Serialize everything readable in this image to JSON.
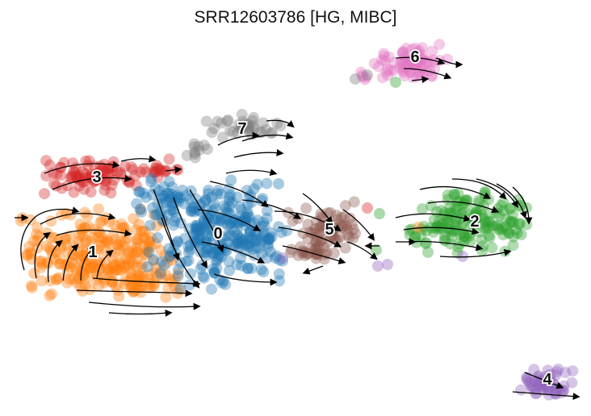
{
  "chart_data": {
    "type": "scatter",
    "title": "SRR12603786 [HG, MIBC]",
    "xlabel": "",
    "ylabel": "",
    "axes_visible": false,
    "grid": false,
    "legend": "on data",
    "overlay": "velocity streamlines",
    "clusters": [
      {
        "label": "0",
        "color": "#1f77b4",
        "center": [
          270,
          290
        ]
      },
      {
        "label": "1",
        "color": "#ff7f0e",
        "center": [
          115,
          313
        ]
      },
      {
        "label": "2",
        "color": "#2ca02c",
        "center": [
          588,
          275
        ]
      },
      {
        "label": "3",
        "color": "#d62728",
        "center": [
          120,
          220
        ]
      },
      {
        "label": "4",
        "color": "#9467bd",
        "center": [
          678,
          471
        ]
      },
      {
        "label": "5",
        "color": "#8c564b",
        "center": [
          408,
          285
        ]
      },
      {
        "label": "6",
        "color": "#e377c2",
        "center": [
          514,
          71
        ]
      },
      {
        "label": "7",
        "color": "#7f7f7f",
        "center": [
          300,
          160
        ]
      }
    ]
  }
}
